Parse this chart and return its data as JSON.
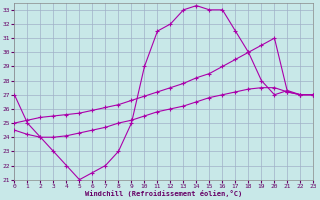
{
  "xlabel": "Windchill (Refroidissement éolien,°C)",
  "background_color": "#c8e8e8",
  "grid_color": "#a0b0c8",
  "line_color": "#aa00aa",
  "xlim": [
    0,
    23
  ],
  "ylim": [
    21,
    33.5
  ],
  "yticks": [
    21,
    22,
    23,
    24,
    25,
    26,
    27,
    28,
    29,
    30,
    31,
    32,
    33
  ],
  "xticks": [
    0,
    1,
    2,
    3,
    4,
    5,
    6,
    7,
    8,
    9,
    10,
    11,
    12,
    13,
    14,
    15,
    16,
    17,
    18,
    19,
    20,
    21,
    22,
    23
  ],
  "line1_x": [
    0,
    1,
    2,
    3,
    4,
    5,
    6,
    7,
    8,
    9,
    10,
    11,
    12,
    13,
    14,
    15,
    16,
    17,
    18,
    19,
    20,
    21,
    22,
    23
  ],
  "line1_y": [
    27,
    25,
    24,
    23,
    22,
    21,
    21.5,
    22,
    23,
    25,
    29,
    31.5,
    32,
    33,
    33.3,
    33.0,
    33,
    31.5,
    30,
    28,
    27,
    27.3,
    27,
    27
  ],
  "line2_x": [
    0,
    1,
    2,
    3,
    4,
    5,
    6,
    7,
    8,
    9,
    10,
    11,
    12,
    13,
    14,
    15,
    16,
    17,
    18,
    19,
    20,
    21,
    22,
    23
  ],
  "line2_y": [
    25,
    25.2,
    25.4,
    25.5,
    25.6,
    25.7,
    25.9,
    26.1,
    26.3,
    26.6,
    26.9,
    27.2,
    27.5,
    27.8,
    28.2,
    28.5,
    29.0,
    29.5,
    30.0,
    30.5,
    31.0,
    27.2,
    27,
    27
  ],
  "line3_x": [
    0,
    1,
    2,
    3,
    4,
    5,
    6,
    7,
    8,
    9,
    10,
    11,
    12,
    13,
    14,
    15,
    16,
    17,
    18,
    19,
    20,
    21,
    22,
    23
  ],
  "line3_y": [
    24.5,
    24.2,
    24.0,
    24.0,
    24.1,
    24.3,
    24.5,
    24.7,
    25.0,
    25.2,
    25.5,
    25.8,
    26.0,
    26.2,
    26.5,
    26.8,
    27.0,
    27.2,
    27.4,
    27.5,
    27.5,
    27.2,
    27.0,
    27.0
  ]
}
